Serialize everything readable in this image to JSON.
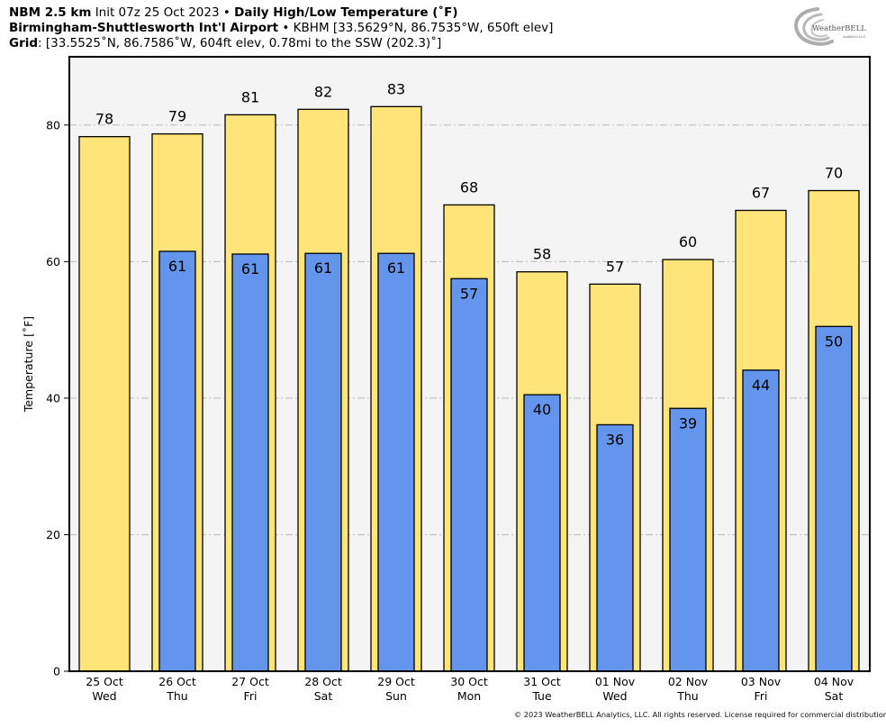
{
  "header": {
    "line1": {
      "model": "NBM 2.5 km",
      "init": "Init 07z 25 Oct 2023",
      "sep": "•",
      "product": "Daily High/Low Temperature (˚F)"
    },
    "line2": {
      "station": "Birmingham-Shuttlesworth Int'l Airport",
      "sep": "•",
      "info": "KBHM [33.5629°N, 86.7535°W, 650ft elev]"
    },
    "line3": {
      "label": "Grid",
      "info": ": [33.5525˚N, 86.7586˚W, 604ft elev, 0.78mi to the SSW (202.3)˚]"
    }
  },
  "logo": {
    "name": "WeatherBELL",
    "sub": "Analytics LLC"
  },
  "footer": {
    "copyright": "© 2023 WeatherBELL Analytics, LLC. All rights reserved. License required for commercial distribution."
  },
  "colors": {
    "high": "#FFE47A",
    "low": "#6495ED",
    "plot_bg": "#F4F4F4",
    "grid": "#BBBBBB"
  },
  "chart_data": {
    "type": "bar",
    "title": "Daily High/Low Temperature (˚F)",
    "xlabel": "",
    "ylabel": "Temperature [˚F]",
    "ylim": [
      0,
      90
    ],
    "yticks": [
      0,
      20,
      40,
      60,
      80
    ],
    "grid": true,
    "legend": "none",
    "categories": [
      {
        "date": "25 Oct",
        "day": "Wed"
      },
      {
        "date": "26 Oct",
        "day": "Thu"
      },
      {
        "date": "27 Oct",
        "day": "Fri"
      },
      {
        "date": "28 Oct",
        "day": "Sat"
      },
      {
        "date": "29 Oct",
        "day": "Sun"
      },
      {
        "date": "30 Oct",
        "day": "Mon"
      },
      {
        "date": "31 Oct",
        "day": "Tue"
      },
      {
        "date": "01 Nov",
        "day": "Wed"
      },
      {
        "date": "02 Nov",
        "day": "Thu"
      },
      {
        "date": "03 Nov",
        "day": "Fri"
      },
      {
        "date": "04 Nov",
        "day": "Sat"
      }
    ],
    "series": [
      {
        "name": "High",
        "values": [
          78.3,
          78.7,
          81.5,
          82.3,
          82.7,
          68.3,
          58.5,
          56.7,
          60.3,
          67.5,
          70.4
        ],
        "labels": [
          "78",
          "79",
          "81",
          "82",
          "83",
          "68",
          "58",
          "57",
          "60",
          "67",
          "70"
        ]
      },
      {
        "name": "Low",
        "values": [
          null,
          61.5,
          61.1,
          61.2,
          61.2,
          57.5,
          40.5,
          36.1,
          38.5,
          44.1,
          50.5
        ],
        "labels": [
          null,
          "61",
          "61",
          "61",
          "61",
          "57",
          "40",
          "36",
          "39",
          "44",
          "50"
        ]
      }
    ]
  }
}
